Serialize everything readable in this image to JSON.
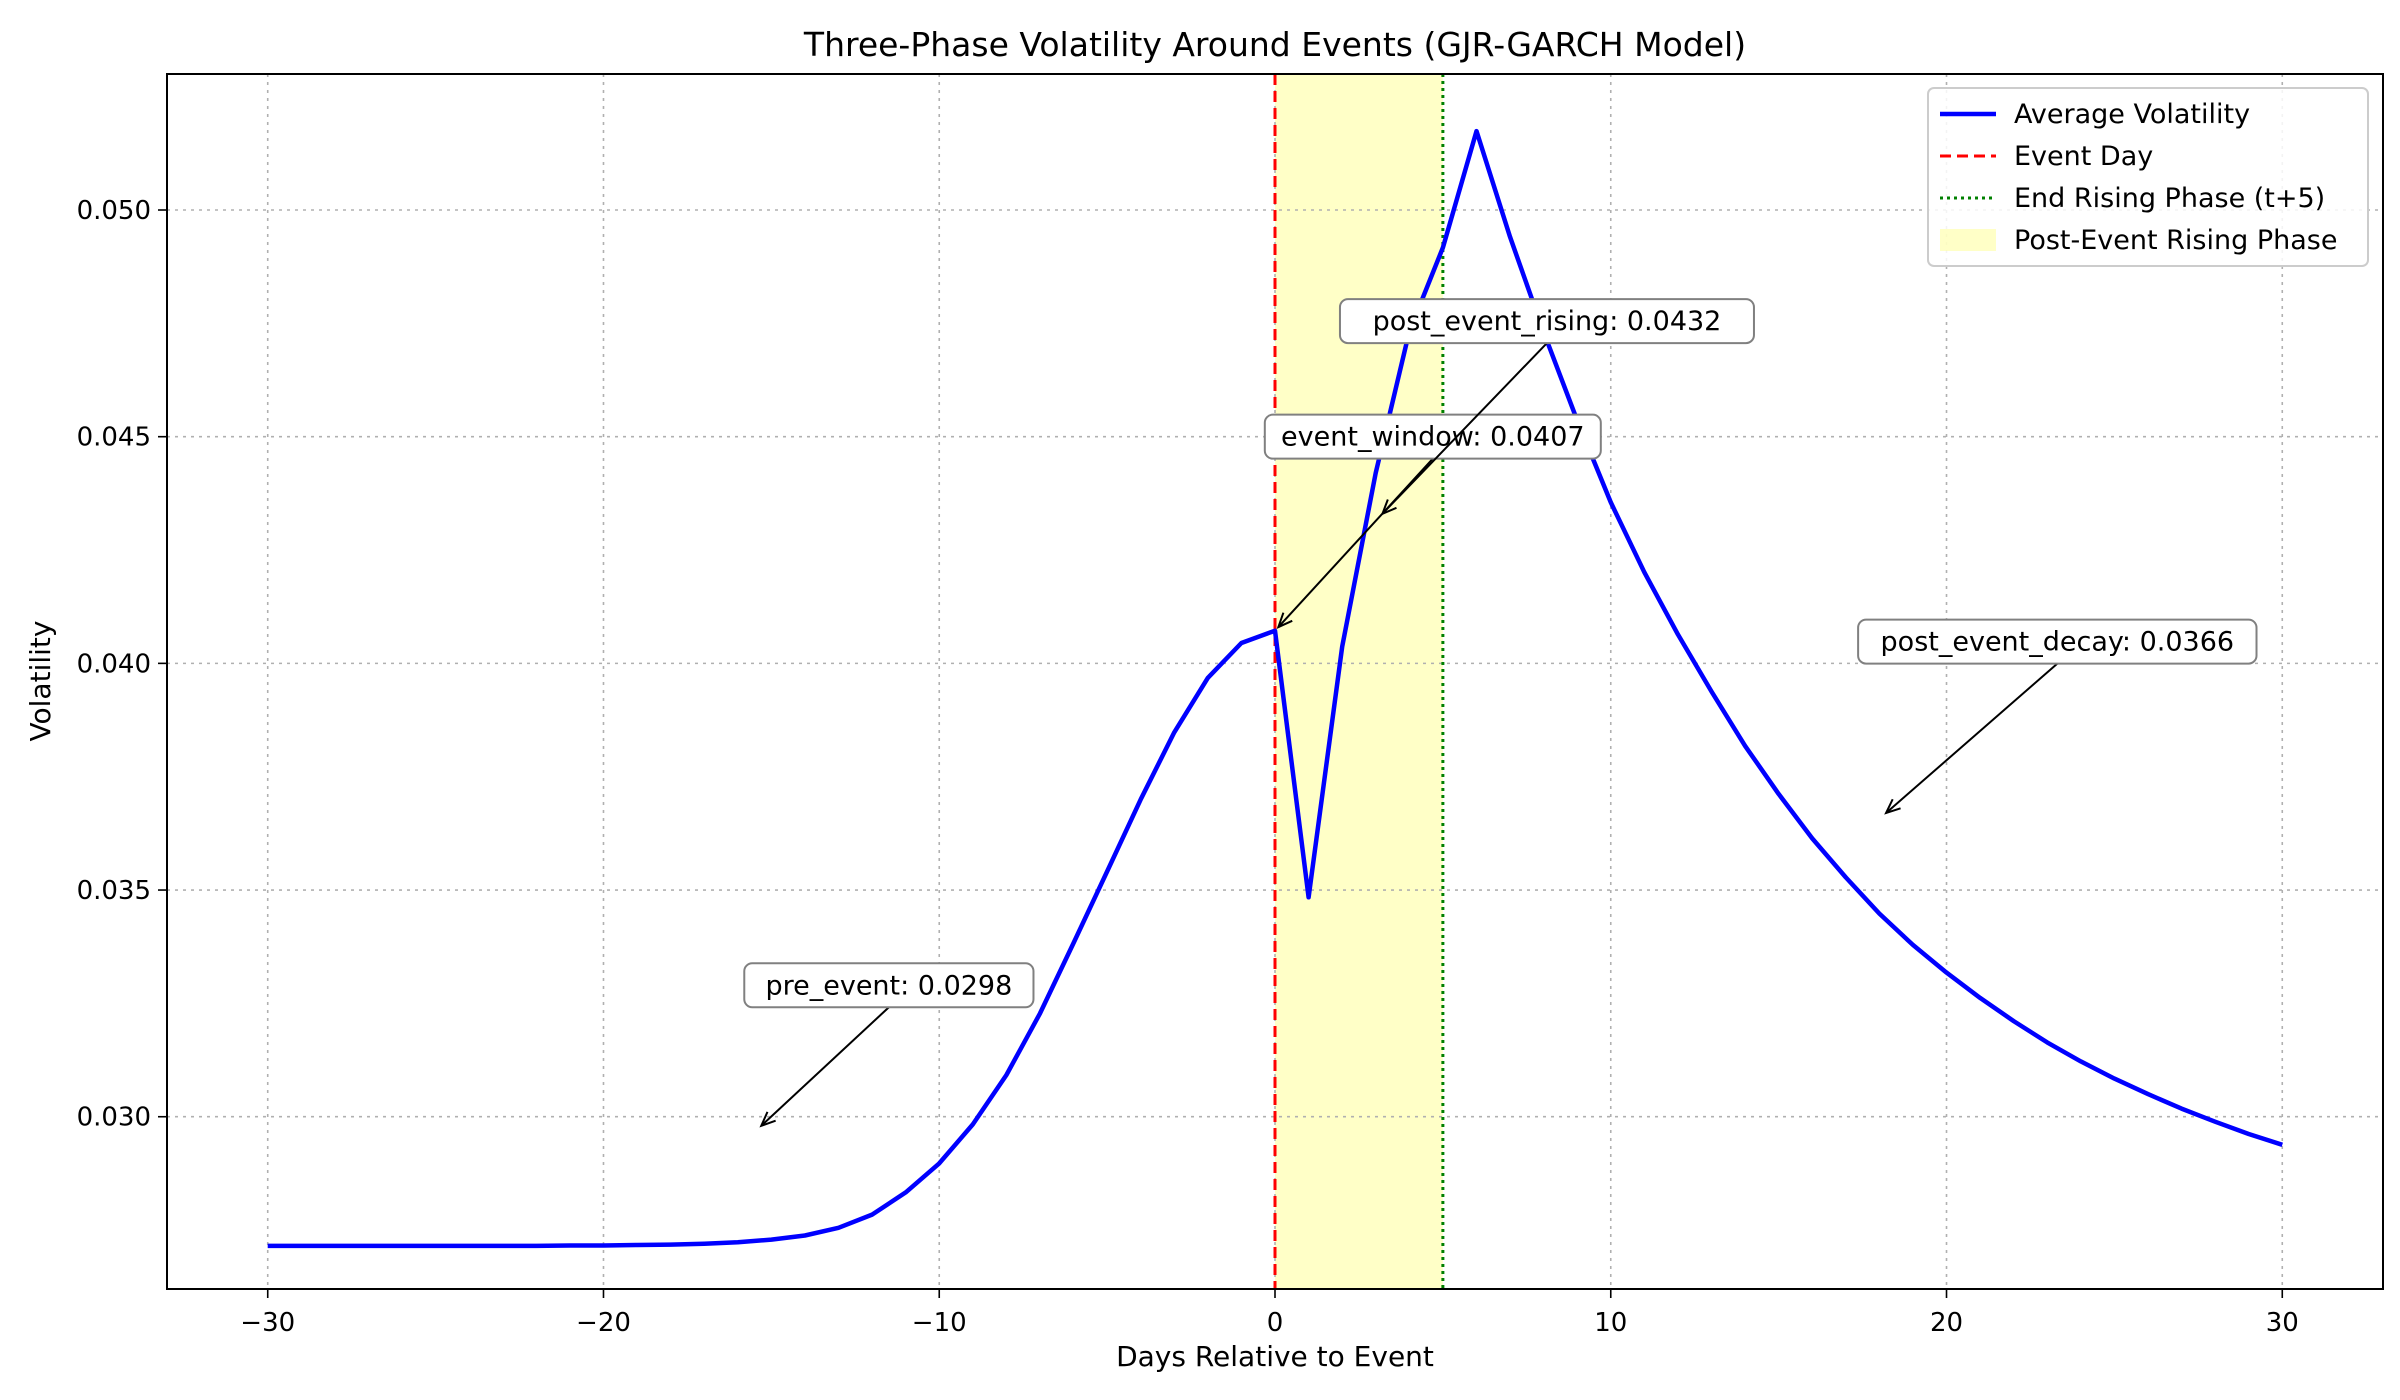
{
  "chart_data": {
    "type": "line",
    "title": "Three-Phase Volatility Around Events (GJR-GARCH Model)",
    "xlabel": "Days Relative to Event",
    "ylabel": "Volatility",
    "xlim": [
      -33,
      33
    ],
    "ylim": [
      0.0262,
      0.053
    ],
    "x_ticks": [
      -30,
      -20,
      -10,
      0,
      10,
      20,
      30
    ],
    "x_tick_labels": [
      "−30",
      "−20",
      "−10",
      "0",
      "10",
      "20",
      "30"
    ],
    "y_ticks": [
      0.03,
      0.035,
      0.04,
      0.045,
      0.05
    ],
    "y_tick_labels": [
      "0.030",
      "0.035",
      "0.040",
      "0.045",
      "0.050"
    ],
    "grid": true,
    "legend_position": "top-right",
    "series": [
      {
        "name": "Average Volatility",
        "color": "#0000ff",
        "x": [
          -30,
          -29,
          -28,
          -27,
          -26,
          -25,
          -24,
          -23,
          -22,
          -21,
          -20,
          -19,
          -18,
          -17,
          -16,
          -15,
          -14,
          -13,
          -12,
          -11,
          -10,
          -9,
          -8,
          -7,
          -6,
          -5,
          -4,
          -3,
          -2,
          -1,
          0,
          1,
          2,
          3,
          4,
          5,
          6,
          7,
          8,
          9,
          10,
          11,
          12,
          13,
          14,
          15,
          16,
          17,
          18,
          19,
          20,
          21,
          22,
          23,
          24,
          25,
          26,
          27,
          28,
          29,
          30
        ],
        "y": [
          0.02715,
          0.02715,
          0.02715,
          0.02715,
          0.02715,
          0.02715,
          0.02715,
          0.02715,
          0.02715,
          0.02716,
          0.02716,
          0.02717,
          0.02718,
          0.0272,
          0.02723,
          0.02729,
          0.02738,
          0.02755,
          0.02784,
          0.02833,
          0.02897,
          0.02983,
          0.03092,
          0.03228,
          0.03383,
          0.03541,
          0.037,
          0.03848,
          0.03968,
          0.04045,
          0.04072,
          0.03484,
          0.04037,
          0.0442,
          0.04732,
          0.04917,
          0.05174,
          0.04941,
          0.04731,
          0.04536,
          0.04355,
          0.04201,
          0.04064,
          0.03938,
          0.03818,
          0.03712,
          0.03614,
          0.03528,
          0.03448,
          0.03379,
          0.03318,
          0.03262,
          0.03211,
          0.03164,
          0.03122,
          0.03084,
          0.0305,
          0.03018,
          0.02989,
          0.02962,
          0.02938
        ]
      }
    ],
    "event_day": {
      "name": "Event Day",
      "x": 0,
      "color": "#ff0000"
    },
    "end_rising": {
      "name": "End Rising Phase (t+5)",
      "x": 5,
      "color": "#008000"
    },
    "rising_span": {
      "name": "Post-Event Rising Phase",
      "x_start": 0,
      "x_end": 5,
      "color": "#ffff99"
    },
    "annotations": [
      {
        "text": "pre_event: 0.0298",
        "text_x": -11.5,
        "text_y": 0.0329,
        "arrow_x": -15.3,
        "arrow_y": 0.0298
      },
      {
        "text": "event_window: 0.0407",
        "text_x": 4.7,
        "text_y": 0.045,
        "arrow_x": 0.1,
        "arrow_y": 0.0408
      },
      {
        "text": "post_event_rising: 0.0432",
        "text_x": 8.1,
        "text_y": 0.04755,
        "arrow_x": 3.2,
        "arrow_y": 0.0433
      },
      {
        "text": "post_event_decay: 0.0366",
        "text_x": 23.3,
        "text_y": 0.04048,
        "arrow_x": 18.2,
        "arrow_y": 0.0367
      }
    ]
  }
}
